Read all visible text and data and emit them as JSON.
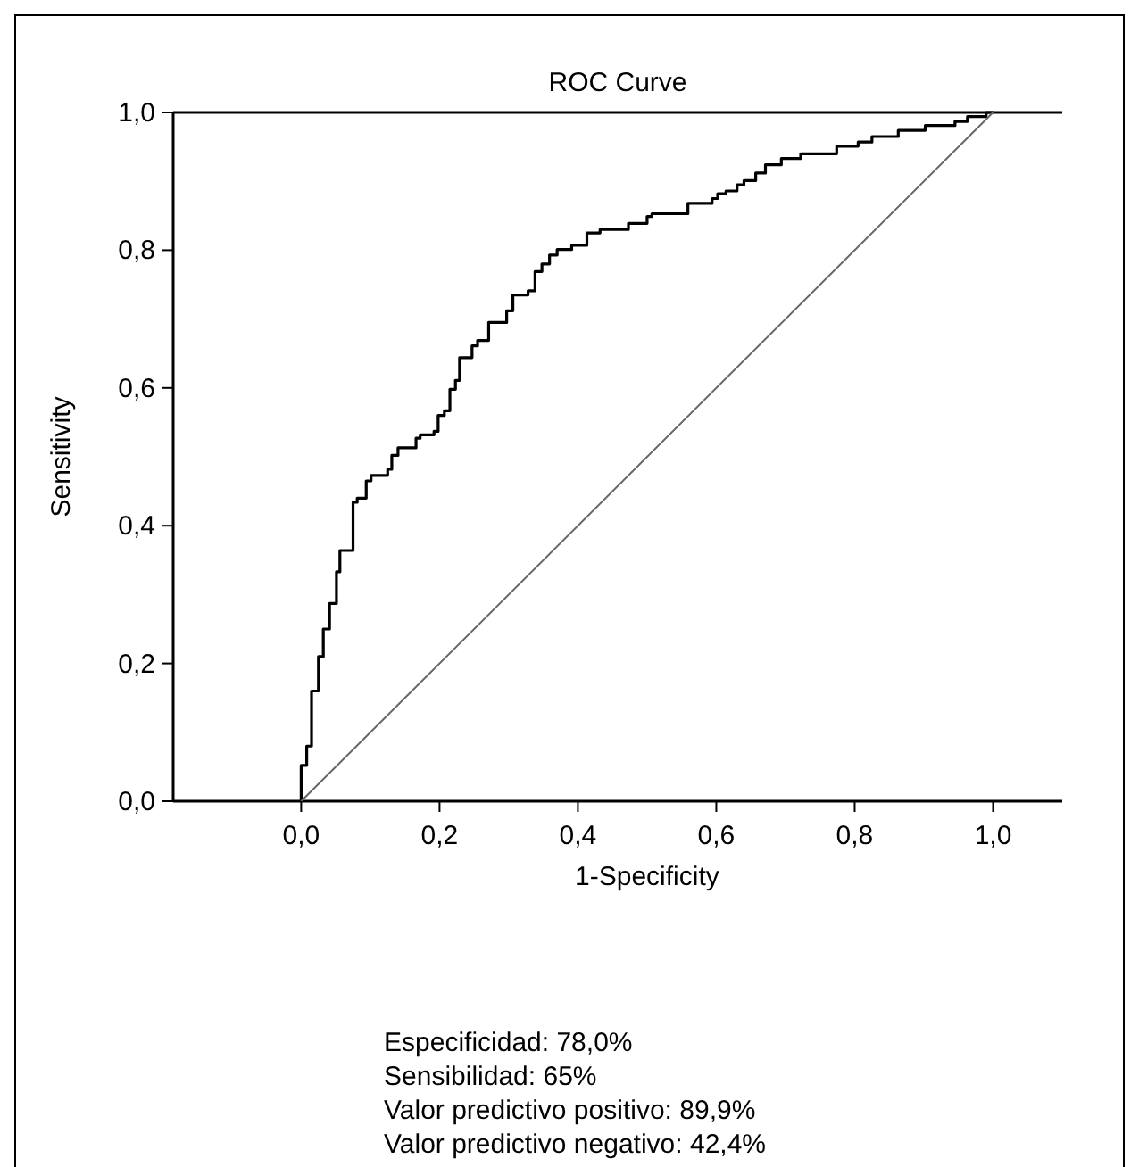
{
  "chart_data": {
    "type": "step",
    "title": "ROC Curve",
    "xlabel": "1-Specificity",
    "ylabel": "Sensitivity",
    "xlim": [
      -0.185,
      1.1
    ],
    "ylim": [
      0,
      1
    ],
    "xticks": [
      {
        "value": 0,
        "label": "0,0"
      },
      {
        "value": 0.2,
        "label": "0,2"
      },
      {
        "value": 0.4,
        "label": "0,4"
      },
      {
        "value": 0.6,
        "label": "0,6"
      },
      {
        "value": 0.8,
        "label": "0,8"
      },
      {
        "value": 1,
        "label": "1,0"
      }
    ],
    "yticks": [
      {
        "value": 0,
        "label": "0,0"
      },
      {
        "value": 0.2,
        "label": "0,2"
      },
      {
        "value": 0.4,
        "label": "0,4"
      },
      {
        "value": 0.6,
        "label": "0,6"
      },
      {
        "value": 0.8,
        "label": "0,8"
      },
      {
        "value": 1,
        "label": "1,0"
      }
    ],
    "grid": false,
    "marker": "none",
    "series": [
      {
        "color": "#000000",
        "line_style": "solid",
        "x": [
          0,
          0,
          0.008,
          0.015,
          0.025,
          0.032,
          0.041,
          0.051,
          0.056,
          0.075,
          0.081,
          0.094,
          0.101,
          0.125,
          0.131,
          0.14,
          0.166,
          0.172,
          0.192,
          0.198,
          0.207,
          0.215,
          0.223,
          0.229,
          0.247,
          0.255,
          0.271,
          0.297,
          0.306,
          0.328,
          0.338,
          0.348,
          0.359,
          0.37,
          0.391,
          0.413,
          0.432,
          0.473,
          0.5,
          0.507,
          0.559,
          0.594,
          0.602,
          0.614,
          0.63,
          0.64,
          0.657,
          0.671,
          0.694,
          0.722,
          0.774,
          0.805,
          0.825,
          0.863,
          0.902,
          0.945,
          0.963,
          0.99,
          1
        ],
        "values": [
          0,
          0.052,
          0.08,
          0.16,
          0.21,
          0.25,
          0.287,
          0.333,
          0.364,
          0.434,
          0.44,
          0.465,
          0.473,
          0.482,
          0.502,
          0.513,
          0.527,
          0.532,
          0.537,
          0.56,
          0.567,
          0.598,
          0.611,
          0.644,
          0.661,
          0.669,
          0.695,
          0.712,
          0.735,
          0.741,
          0.769,
          0.78,
          0.793,
          0.801,
          0.807,
          0.825,
          0.83,
          0.839,
          0.849,
          0.853,
          0.868,
          0.875,
          0.882,
          0.886,
          0.895,
          0.901,
          0.912,
          0.924,
          0.933,
          0.94,
          0.951,
          0.957,
          0.965,
          0.974,
          0.981,
          0.987,
          0.994,
          1,
          1
        ]
      },
      {
        "type": "line",
        "color": "#666666",
        "line_style": "solid",
        "x": [
          0,
          1
        ],
        "values": [
          0,
          1
        ]
      }
    ],
    "annotations": [
      "Especificidad: 78,0%",
      "Sensibilidad: 65%",
      "Valor predictivo positivo: 89,9%",
      "Valor predictivo negativo: 42,4%"
    ]
  }
}
